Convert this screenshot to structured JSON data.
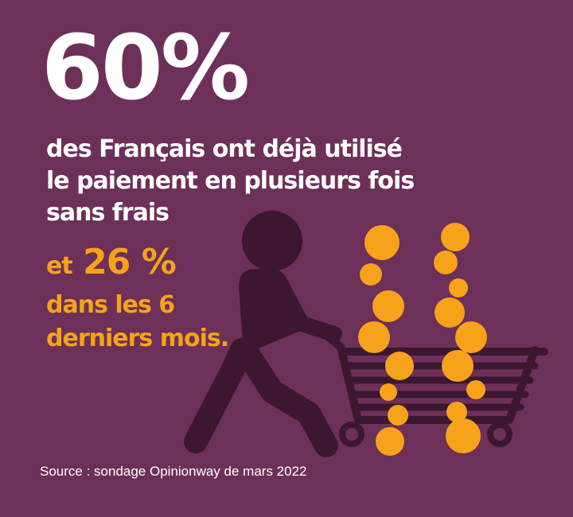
{
  "headline": {
    "value": "60%"
  },
  "statement": {
    "lines": [
      "des Français ont déjà utilisé",
      "le paiement en plusieurs fois",
      "sans frais"
    ]
  },
  "highlight": {
    "prefix": "et",
    "value": "26 %",
    "lines": [
      "dans les 6",
      "derniers mois."
    ]
  },
  "source": {
    "text": "Source : sondage Opinionway de mars 2022"
  },
  "colors": {
    "background": "#6d3058",
    "accent": "#f7a21b",
    "text": "#ffffff",
    "figure": "#3b1730"
  },
  "icons": {
    "person": "person-pushing-cart-icon",
    "cart": "shopping-cart-icon",
    "coins": "coins-icon"
  }
}
